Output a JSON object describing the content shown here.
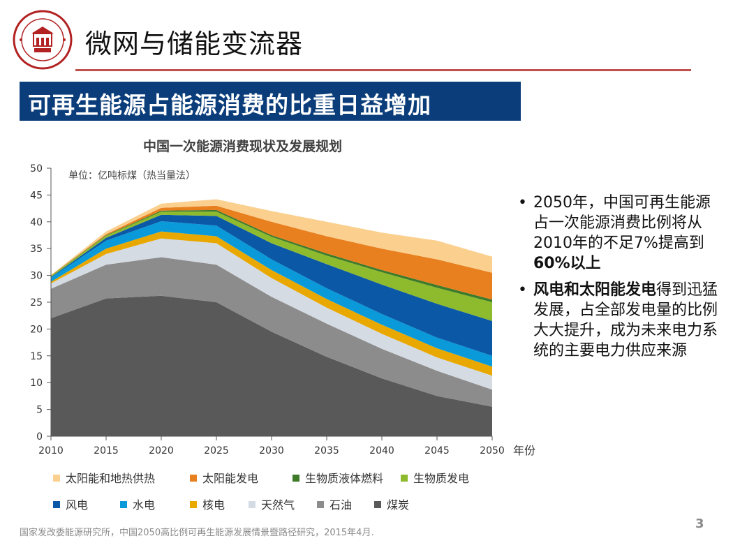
{
  "header": {
    "title": "微网与储能变流器",
    "subtitle": "可再生能源占能源消费的比重日益增加"
  },
  "colors": {
    "accent_rule": "#c0504d",
    "subtitle_bg": "#0a3d7a",
    "logo": "#b22222"
  },
  "chart_data": {
    "type": "area",
    "stacked": true,
    "title": "中国一次能源消费现状及发展规划",
    "unit_note": "单位：亿吨标煤（热当量法）",
    "xlabel": "年份",
    "ylabel": "",
    "x": [
      2010,
      2015,
      2020,
      2025,
      2030,
      2035,
      2040,
      2045,
      2050
    ],
    "xlim": [
      2010,
      2050
    ],
    "ylim": [
      0,
      50
    ],
    "yticks": [
      0,
      5,
      10,
      15,
      20,
      25,
      30,
      35,
      40,
      45,
      50
    ],
    "grid": false,
    "legend_position": "bottom",
    "series": [
      {
        "name": "煤炭",
        "color": "#595959",
        "values": [
          22.0,
          25.7,
          26.2,
          25.0,
          19.5,
          14.8,
          10.8,
          7.5,
          5.5
        ]
      },
      {
        "name": "石油",
        "color": "#8c8c8c",
        "values": [
          5.5,
          6.3,
          7.2,
          7.0,
          6.5,
          6.2,
          5.5,
          4.7,
          3.2
        ]
      },
      {
        "name": "天然气",
        "color": "#d5dbe3",
        "values": [
          1.0,
          2.0,
          3.5,
          4.0,
          3.5,
          3.0,
          2.8,
          2.5,
          2.6
        ]
      },
      {
        "name": "核电",
        "color": "#e8a800",
        "values": [
          0.3,
          1.0,
          1.3,
          1.3,
          1.5,
          1.6,
          1.7,
          1.7,
          1.7
        ]
      },
      {
        "name": "水电",
        "color": "#0a9ad9",
        "values": [
          0.8,
          1.5,
          1.9,
          2.0,
          2.0,
          2.0,
          2.0,
          2.0,
          2.0
        ]
      },
      {
        "name": "风电",
        "color": "#0b59a6",
        "values": [
          0.1,
          0.5,
          1.2,
          1.8,
          3.0,
          4.5,
          5.5,
          6.3,
          6.5
        ]
      },
      {
        "name": "生物质发电",
        "color": "#8ebb2e",
        "values": [
          0.2,
          0.4,
          0.6,
          0.8,
          1.2,
          1.6,
          2.3,
          3.0,
          3.5
        ]
      },
      {
        "name": "生物质液体燃料",
        "color": "#3d7a2a",
        "values": [
          0.05,
          0.1,
          0.2,
          0.3,
          0.3,
          0.4,
          0.4,
          0.5,
          0.5
        ]
      },
      {
        "name": "太阳能发电",
        "color": "#e9801f",
        "values": [
          0.05,
          0.2,
          0.5,
          0.8,
          2.5,
          3.2,
          4.0,
          4.8,
          5.0
        ]
      },
      {
        "name": "太阳能和地热供热",
        "color": "#fbd08f",
        "values": [
          0.1,
          0.5,
          0.8,
          1.2,
          2.0,
          2.7,
          3.0,
          3.5,
          3.0
        ]
      }
    ]
  },
  "legend_rows": [
    [
      "太阳能和地热供热",
      "太阳能发电",
      "生物质液体燃料",
      "生物质发电"
    ],
    [
      "风电",
      "水电",
      "核电",
      "天然气",
      "石油",
      "煤炭"
    ]
  ],
  "bullets": [
    {
      "text": "2050年，中国可再生能源占一次能源消费比例将从2010年的不足7%提高到",
      "bold": "60%以上",
      "after": ""
    },
    {
      "text": "",
      "bold": "风电和太阳能发电",
      "after": "得到迅猛发展，占全部发电量的比例大大提升，成为未来电力系统的主要电力供应来源"
    }
  ],
  "bullet_marker": "•",
  "footnote": "国家发改委能源研究所，中国2050高比例可再生能源发展情景暨路径研究，2015年4月.",
  "page_number": "3"
}
